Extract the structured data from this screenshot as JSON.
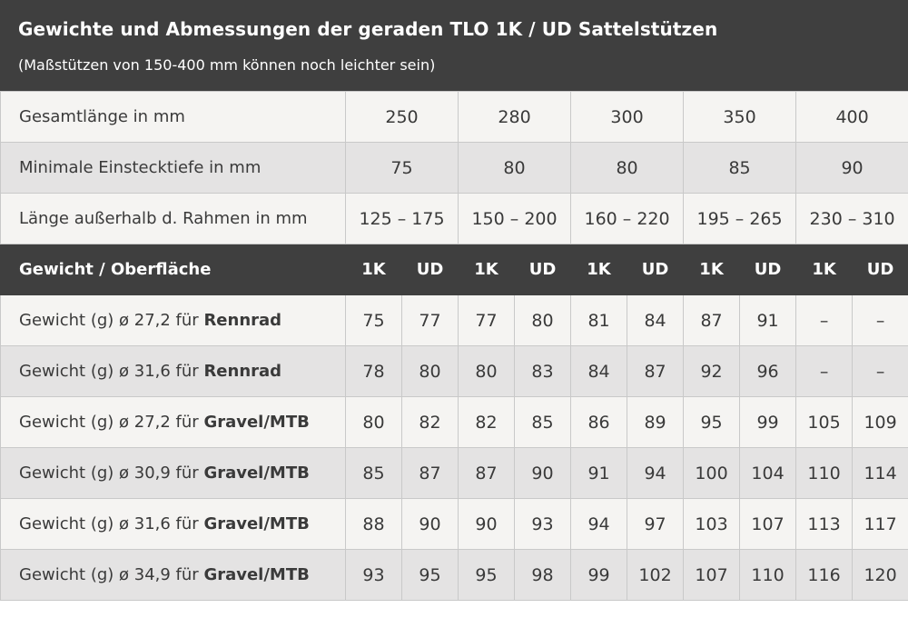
{
  "header": {
    "title": "Gewichte und Abmessungen der geraden TLO 1K / UD Sattelstützen",
    "subtitle": "(Maßstützen von 150-400 mm können noch leichter sein)"
  },
  "dimension_rows": [
    {
      "label": "Gesamtlänge in mm",
      "values": [
        "250",
        "280",
        "300",
        "350",
        "400"
      ]
    },
    {
      "label": "Minimale Einstecktiefe in mm",
      "values": [
        "75",
        "80",
        "80",
        "85",
        "90"
      ]
    },
    {
      "label": "Länge außerhalb d. Rahmen in mm",
      "values": [
        "125 – 175",
        "150 – 200",
        "160 – 220",
        "195 – 265",
        "230 – 310"
      ]
    }
  ],
  "surface_header": {
    "label": "Gewicht / Oberfläche",
    "columns": [
      "1K",
      "UD",
      "1K",
      "UD",
      "1K",
      "UD",
      "1K",
      "UD",
      "1K",
      "UD"
    ]
  },
  "weight_rows": [
    {
      "prefix": "Gewicht (g) ø 27,2 für ",
      "bike": "Rennrad",
      "values": [
        "75",
        "77",
        "77",
        "80",
        "81",
        "84",
        "87",
        "91",
        "–",
        "–"
      ]
    },
    {
      "prefix": "Gewicht (g) ø 31,6 für ",
      "bike": "Rennrad",
      "values": [
        "78",
        "80",
        "80",
        "83",
        "84",
        "87",
        "92",
        "96",
        "–",
        "–"
      ]
    },
    {
      "prefix": "Gewicht (g) ø 27,2 für ",
      "bike": "Gravel/MTB",
      "values": [
        "80",
        "82",
        "82",
        "85",
        "86",
        "89",
        "95",
        "99",
        "105",
        "109"
      ]
    },
    {
      "prefix": "Gewicht (g) ø 30,9 für ",
      "bike": "Gravel/MTB",
      "values": [
        "85",
        "87",
        "87",
        "90",
        "91",
        "94",
        "100",
        "104",
        "110",
        "114"
      ]
    },
    {
      "prefix": "Gewicht (g) ø 31,6 für ",
      "bike": "Gravel/MTB",
      "values": [
        "88",
        "90",
        "90",
        "93",
        "94",
        "97",
        "103",
        "107",
        "113",
        "117"
      ]
    },
    {
      "prefix": "Gewicht (g) ø 34,9 für ",
      "bike": "Gravel/MTB",
      "values": [
        "93",
        "95",
        "95",
        "98",
        "99",
        "102",
        "107",
        "110",
        "116",
        "120"
      ]
    }
  ],
  "colors": {
    "header_bg": "#3f3f3f",
    "row_light": "#f5f4f2",
    "row_grey": "#e4e3e3",
    "border": "#c9c9c9"
  }
}
